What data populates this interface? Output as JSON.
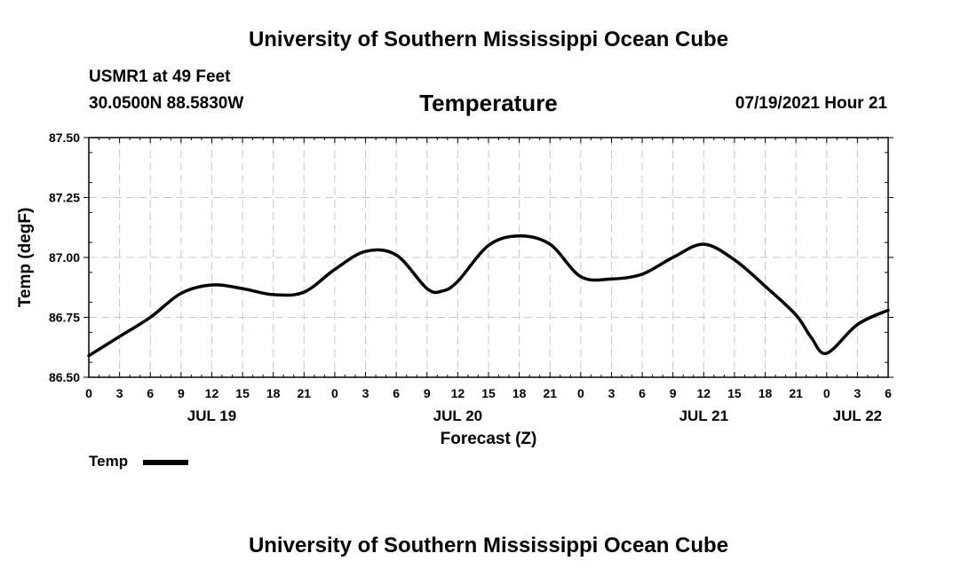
{
  "header": {
    "title_top": "University of Southern Mississippi Ocean Cube",
    "station_depth": "USMR1 at 49 Feet",
    "coordinates": "30.0500N  88.5830W",
    "parameter": "Temperature",
    "datetime": "07/19/2021 Hour 21"
  },
  "footer": {
    "title_bottom": "University of Southern Mississippi Ocean Cube"
  },
  "legend": {
    "label": "Temp"
  },
  "chart_data": {
    "type": "line",
    "xlabel": "Forecast (Z)",
    "ylabel": "Temp (degF)",
    "x_unit": "hours since JUL 19 00Z",
    "xlim": [
      0,
      78
    ],
    "ylim": [
      86.5,
      87.5
    ],
    "y_ticks": [
      86.5,
      86.75,
      87.0,
      87.25,
      87.5
    ],
    "y_tick_labels": [
      "86.50",
      "86.75",
      "87.00",
      "87.25",
      "87.50"
    ],
    "x_ticks": [
      0,
      3,
      6,
      9,
      12,
      15,
      18,
      21,
      24,
      27,
      30,
      33,
      36,
      39,
      42,
      45,
      48,
      51,
      54,
      57,
      60,
      63,
      66,
      69,
      72,
      75,
      78
    ],
    "x_tick_labels": [
      "0",
      "3",
      "6",
      "9",
      "12",
      "15",
      "18",
      "21",
      "0",
      "3",
      "6",
      "9",
      "12",
      "15",
      "18",
      "21",
      "0",
      "3",
      "6",
      "9",
      "12",
      "15",
      "18",
      "21",
      "0",
      "3",
      "6"
    ],
    "date_labels": [
      {
        "x": 12,
        "text": "JUL 19"
      },
      {
        "x": 36,
        "text": "JUL 20"
      },
      {
        "x": 60,
        "text": "JUL 21"
      },
      {
        "x": 75,
        "text": "JUL 22"
      }
    ],
    "grid": true,
    "series": [
      {
        "name": "Temp",
        "color": "#000000",
        "x": [
          0,
          3,
          6,
          9,
          12,
          15,
          18,
          21,
          24,
          27,
          30,
          33,
          34.5,
          36,
          39,
          42,
          45,
          48,
          51,
          54,
          57,
          60,
          63,
          66,
          69,
          70.5,
          72,
          75,
          78
        ],
        "y": [
          86.59,
          86.67,
          86.75,
          86.85,
          86.885,
          86.87,
          86.845,
          86.855,
          86.95,
          87.025,
          87.01,
          86.87,
          86.86,
          86.9,
          87.05,
          87.09,
          87.055,
          86.92,
          86.91,
          86.93,
          87.0,
          87.055,
          86.99,
          86.88,
          86.76,
          86.665,
          86.6,
          86.72,
          86.78
        ]
      }
    ]
  }
}
